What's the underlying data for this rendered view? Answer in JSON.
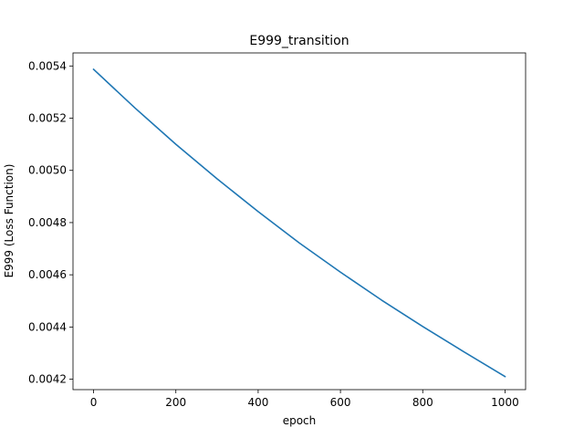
{
  "chart_data": {
    "type": "line",
    "title": "E999_transition",
    "xlabel": "epoch",
    "ylabel": "E999 (Loss Function)",
    "xlim": [
      -50,
      1050
    ],
    "ylim": [
      0.00416,
      0.00545
    ],
    "xticks": [
      0,
      200,
      400,
      600,
      800,
      1000
    ],
    "xtick_labels": [
      "0",
      "200",
      "400",
      "600",
      "800",
      "1000"
    ],
    "yticks": [
      0.0042,
      0.0044,
      0.0046,
      0.0048,
      0.005,
      0.0052,
      0.0054
    ],
    "ytick_labels": [
      "0.0042",
      "0.0044",
      "0.0046",
      "0.0048",
      "0.0050",
      "0.0052",
      "0.0054"
    ],
    "grid": false,
    "legend": "none",
    "series": [
      {
        "color": "#1f77b4",
        "x": [
          0,
          100,
          200,
          300,
          400,
          500,
          600,
          700,
          800,
          900,
          1000
        ],
        "y": [
          0.005387,
          0.00524,
          0.0051,
          0.004968,
          0.004842,
          0.004722,
          0.00461,
          0.004503,
          0.004402,
          0.004305,
          0.00421
        ]
      }
    ]
  }
}
